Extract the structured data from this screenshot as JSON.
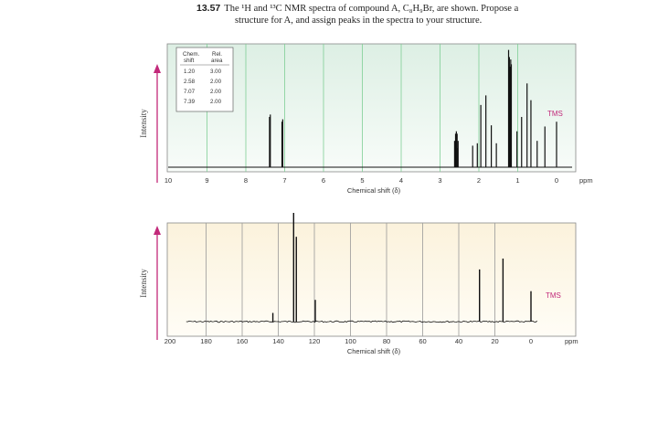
{
  "problem": {
    "number": "13.57",
    "text_line1": "The ¹H and ¹³C NMR spectra of compound A, C₈H₉Br, are shown. Propose a",
    "text_line2": "structure for A, and assign peaks in the spectra to your structure."
  },
  "h_spectrum": {
    "ylabel": "Intensity",
    "xlabel": "Chemical shift (δ)",
    "unit_label": "ppm",
    "tms_label": "TMS",
    "x_ticks": [
      "10",
      "9",
      "8",
      "7",
      "6",
      "5",
      "4",
      "3",
      "2",
      "1",
      "0"
    ],
    "table": {
      "headers": [
        "Chem.",
        "Rel.",
        "shift",
        "area"
      ],
      "rows": [
        [
          "1.20",
          "3.00"
        ],
        [
          "2.58",
          "2.00"
        ],
        [
          "7.07",
          "2.00"
        ],
        [
          "7.39",
          "2.00"
        ]
      ]
    },
    "colors": {
      "bg_top": "#ddefe4",
      "bg_bottom": "#f8fcf9",
      "tms": "#c2297a",
      "arrow": "#c2297a"
    }
  },
  "c_spectrum": {
    "ylabel": "Intensity",
    "xlabel": "Chemical shift (δ)",
    "unit_label": "ppm",
    "tms_label": "TMS",
    "x_ticks": [
      "200",
      "180",
      "160",
      "140",
      "120",
      "100",
      "80",
      "60",
      "40",
      "20",
      "0"
    ],
    "colors": {
      "bg_top": "#fbf2dc",
      "bg_bottom": "#fffdf6",
      "tms": "#c2297a",
      "arrow": "#c2297a"
    }
  },
  "chart_data": [
    {
      "type": "line",
      "title": "",
      "xlabel": "Chemical shift (δ)",
      "ylabel": "Intensity",
      "xlim": [
        10,
        0
      ],
      "peaks_ppm": [
        {
          "shift": 7.39,
          "multiplet": "doublet",
          "rel_area": 2.0
        },
        {
          "shift": 7.07,
          "multiplet": "doublet",
          "rel_area": 2.0
        },
        {
          "shift": 2.58,
          "multiplet": "quartet",
          "rel_area": 2.0
        },
        {
          "shift": 1.2,
          "multiplet": "triplet",
          "rel_area": 3.0
        },
        {
          "shift": 0.0,
          "label": "TMS"
        }
      ]
    },
    {
      "type": "line",
      "title": "",
      "xlabel": "Chemical shift (δ)",
      "ylabel": "Intensity",
      "xlim": [
        200,
        0
      ],
      "peaks_ppm": [
        {
          "shift": 143,
          "intensity": 0.08
        },
        {
          "shift": 131.5,
          "intensity": 1.0
        },
        {
          "shift": 130,
          "intensity": 0.78
        },
        {
          "shift": 119.5,
          "intensity": 0.2
        },
        {
          "shift": 28.5,
          "intensity": 0.48
        },
        {
          "shift": 15.5,
          "intensity": 0.58
        },
        {
          "shift": 0.0,
          "intensity": 0.28,
          "label": "TMS"
        }
      ]
    }
  ]
}
